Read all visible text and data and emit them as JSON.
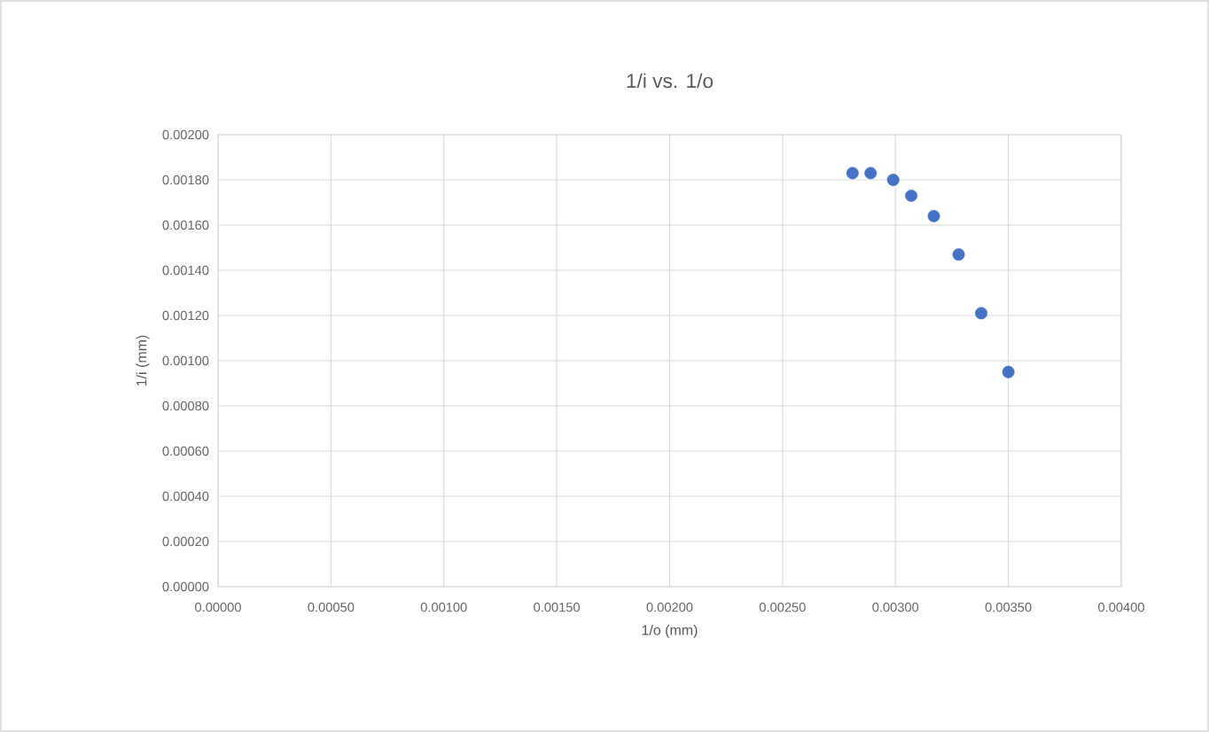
{
  "chart_data": {
    "type": "scatter",
    "title": "1/i vs. 1/o",
    "xlabel": "1/o (mm)",
    "ylabel": "1/i (mm)",
    "series": [
      {
        "color": "#4472c4",
        "x": [
          0.00281,
          0.00289,
          0.00299,
          0.00307,
          0.00317,
          0.00328,
          0.00338,
          0.0035
        ],
        "values": [
          0.00183,
          0.00183,
          0.0018,
          0.00173,
          0.00164,
          0.00147,
          0.00121,
          0.00095
        ]
      }
    ],
    "xlim": [
      0,
      0.004
    ],
    "ylim": [
      0,
      0.002
    ],
    "xticks": [
      {
        "value": 0,
        "label": "0.00000"
      },
      {
        "value": 0.0005,
        "label": "0.00050"
      },
      {
        "value": 0.001,
        "label": "0.00100"
      },
      {
        "value": 0.0015,
        "label": "0.00150"
      },
      {
        "value": 0.002,
        "label": "0.00200"
      },
      {
        "value": 0.0025,
        "label": "0.00250"
      },
      {
        "value": 0.003,
        "label": "0.00300"
      },
      {
        "value": 0.0035,
        "label": "0.00350"
      },
      {
        "value": 0.004,
        "label": "0.00400"
      }
    ],
    "yticks": [
      {
        "value": 0,
        "label": "0.00000"
      },
      {
        "value": 0.0002,
        "label": "0.00020"
      },
      {
        "value": 0.0004,
        "label": "0.00040"
      },
      {
        "value": 0.0006,
        "label": "0.00060"
      },
      {
        "value": 0.0008,
        "label": "0.00080"
      },
      {
        "value": 0.001,
        "label": "0.00100"
      },
      {
        "value": 0.0012,
        "label": "0.00120"
      },
      {
        "value": 0.0014,
        "label": "0.00140"
      },
      {
        "value": 0.0016,
        "label": "0.00160"
      },
      {
        "value": 0.0018,
        "label": "0.00180"
      },
      {
        "value": 0.002,
        "label": "0.00200"
      }
    ],
    "grid": true,
    "marker": "circle"
  }
}
